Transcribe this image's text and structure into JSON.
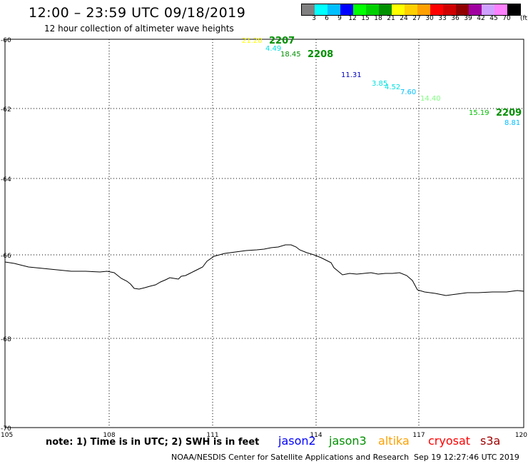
{
  "title": "12:00 – 23:59 UTC 09/18/2019",
  "subtitle": "12 hour collection of altimeter wave heights",
  "scale": {
    "colors": [
      "#808080",
      "#00ffff",
      "#00bfff",
      "#0000ff",
      "#00ff00",
      "#00d000",
      "#009000",
      "#ffff00",
      "#ffd000",
      "#ffa000",
      "#ff0000",
      "#d00000",
      "#900000",
      "#a000a0",
      "#d0a0ff",
      "#ff80ff",
      "#000000"
    ],
    "labels": [
      "3",
      "6",
      "9",
      "12",
      "15",
      "18",
      "21",
      "24",
      "27",
      "30",
      "33",
      "36",
      "39",
      "42",
      "45",
      "70"
    ],
    "unit": "(ft)"
  },
  "axes": {
    "lat_labels": [
      "-60",
      "-62",
      "-64",
      "-66",
      "-68",
      "-70"
    ],
    "lon_labels": [
      "105",
      "108",
      "111",
      "114",
      "117",
      "120"
    ]
  },
  "swh_values": [
    {
      "text": "21.20",
      "color": "#ffff00"
    },
    {
      "text": "4.49",
      "color": "#00e0e0"
    },
    {
      "text": "18.45",
      "color": "#009000"
    },
    {
      "text": "11.31",
      "color": "#0000c0"
    },
    {
      "text": "3.85",
      "color": "#00e0e0"
    },
    {
      "text": "4.52",
      "color": "#00e0e0"
    },
    {
      "text": "7.60",
      "color": "#00bfff"
    },
    {
      "text": "14.40",
      "color": "#80ff80"
    },
    {
      "text": "15.19",
      "color": "#00c000"
    },
    {
      "text": "8.81",
      "color": "#00bfff"
    }
  ],
  "passes": [
    {
      "text": "2207",
      "color": "#009000"
    },
    {
      "text": "2208",
      "color": "#009000"
    },
    {
      "text": "2209",
      "color": "#009000"
    }
  ],
  "note": "note: 1) Time is in UTC; 2) SWH is in feet",
  "satellites": [
    {
      "name": "jason2",
      "color": "#0000ff"
    },
    {
      "name": "jason3",
      "color": "#009000"
    },
    {
      "name": "altika",
      "color": "#ffa000"
    },
    {
      "name": "cryosat",
      "color": "#ff0000"
    },
    {
      "name": "s3a",
      "color": "#a00000"
    }
  ],
  "credit": "NOAA/NESDIS Center for Satellite Applications and Research",
  "timestamp": "Sep 19 12:27:46 UTC 2019"
}
